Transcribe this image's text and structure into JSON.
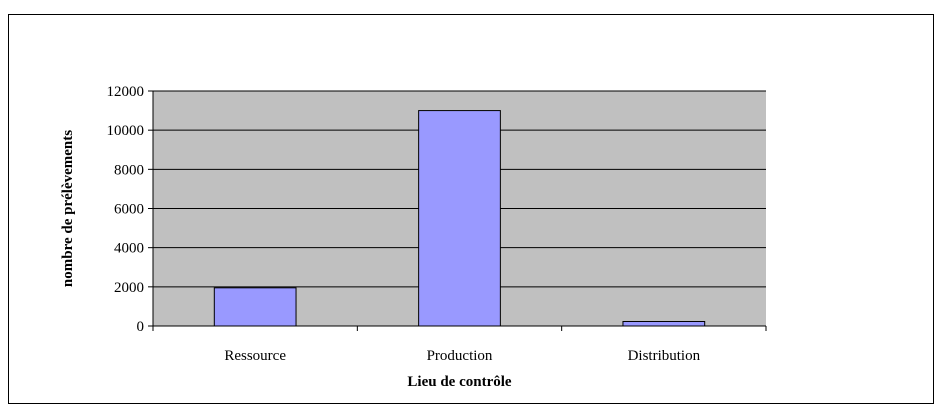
{
  "chart_data": {
    "type": "bar",
    "title": "",
    "xlabel": "Lieu de contrôle",
    "ylabel": "nombre de prélèvements",
    "categories": [
      "Ressource",
      "Production",
      "Distribution"
    ],
    "values": [
      1950,
      11000,
      230
    ],
    "ylim": [
      0,
      12000
    ],
    "yticks": [
      0,
      2000,
      4000,
      6000,
      8000,
      10000,
      12000
    ],
    "grid": true,
    "legend": "none",
    "colors": {
      "bar_fill": "#9999ff",
      "plot_background": "#c0c0c0",
      "gridline": "#000000"
    }
  }
}
